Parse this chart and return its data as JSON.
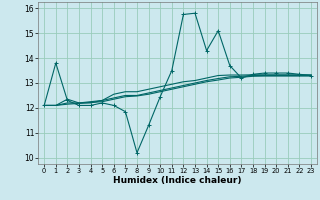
{
  "xlabel": "Humidex (Indice chaleur)",
  "bg_color": "#cce8ee",
  "grid_color": "#99ccbb",
  "line_color": "#006666",
  "xlim": [
    -0.5,
    23.5
  ],
  "ylim": [
    9.75,
    16.25
  ],
  "yticks": [
    10,
    11,
    12,
    13,
    14,
    15,
    16
  ],
  "xticks": [
    0,
    1,
    2,
    3,
    4,
    5,
    6,
    7,
    8,
    9,
    10,
    11,
    12,
    13,
    14,
    15,
    16,
    17,
    18,
    19,
    20,
    21,
    22,
    23
  ],
  "line1_x": [
    0,
    1,
    2,
    3,
    4,
    5,
    6,
    7,
    8,
    9,
    10,
    11,
    12,
    13,
    14,
    15,
    16,
    17,
    18,
    19,
    20,
    21,
    22,
    23
  ],
  "line1_y": [
    12.1,
    13.8,
    12.3,
    12.1,
    12.1,
    12.2,
    12.1,
    11.85,
    10.2,
    11.3,
    12.45,
    13.5,
    15.75,
    15.8,
    14.3,
    15.1,
    13.7,
    13.2,
    13.35,
    13.4,
    13.4,
    13.4,
    13.35,
    13.3
  ],
  "line2_x": [
    0,
    1,
    2,
    3,
    4,
    5,
    6,
    7,
    8,
    9,
    10,
    11,
    12,
    13,
    14,
    15,
    16,
    17,
    18,
    19,
    20,
    21,
    22,
    23
  ],
  "line2_y": [
    12.1,
    12.1,
    12.35,
    12.2,
    12.2,
    12.3,
    12.55,
    12.65,
    12.65,
    12.75,
    12.85,
    12.95,
    13.05,
    13.1,
    13.2,
    13.3,
    13.32,
    13.32,
    13.33,
    13.33,
    13.33,
    13.33,
    13.33,
    13.33
  ],
  "line3_x": [
    0,
    1,
    2,
    3,
    4,
    5,
    6,
    7,
    8,
    9,
    10,
    11,
    12,
    13,
    14,
    15,
    16,
    17,
    18,
    19,
    20,
    21,
    22,
    23
  ],
  "line3_y": [
    12.1,
    12.1,
    12.2,
    12.2,
    12.25,
    12.3,
    12.4,
    12.5,
    12.5,
    12.6,
    12.7,
    12.8,
    12.9,
    13.0,
    13.1,
    13.18,
    13.25,
    13.27,
    13.3,
    13.3,
    13.3,
    13.3,
    13.3,
    13.3
  ],
  "line4_x": [
    0,
    1,
    2,
    3,
    4,
    5,
    6,
    7,
    8,
    9,
    10,
    11,
    12,
    13,
    14,
    15,
    16,
    17,
    18,
    19,
    20,
    21,
    22,
    23
  ],
  "line4_y": [
    12.1,
    12.1,
    12.15,
    12.18,
    12.22,
    12.25,
    12.35,
    12.45,
    12.48,
    12.55,
    12.65,
    12.75,
    12.85,
    12.95,
    13.05,
    13.12,
    13.2,
    13.23,
    13.27,
    13.28,
    13.28,
    13.28,
    13.28,
    13.28
  ]
}
